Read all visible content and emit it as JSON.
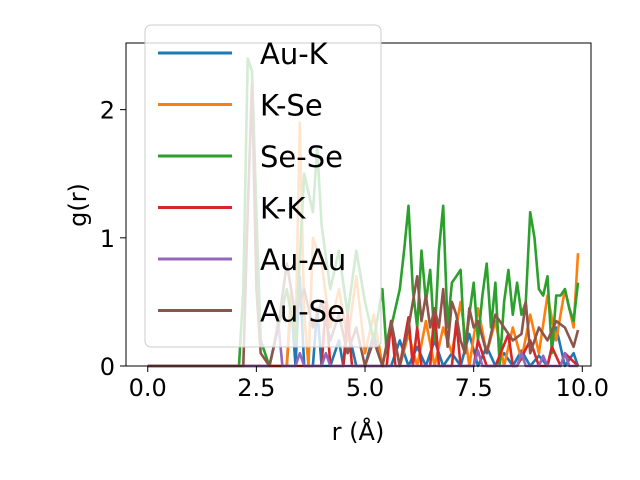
{
  "chart_data": {
    "type": "line",
    "title": "",
    "xlabel": "r (Å)",
    "ylabel": "g(r)",
    "xlim": [
      -0.5,
      10.2
    ],
    "ylim": [
      0,
      2.52
    ],
    "xticks": [
      0.0,
      2.5,
      5.0,
      7.5,
      10.0
    ],
    "xtick_labels": [
      "0.0",
      "2.5",
      "5.0",
      "7.5",
      "10.0"
    ],
    "yticks": [
      0,
      1,
      2
    ],
    "ytick_labels": [
      "0",
      "1",
      "2"
    ],
    "grid": false,
    "legend_position": "upper-left",
    "series": [
      {
        "name": "Au-K",
        "color": "#1f77b4",
        "x": [
          0,
          3.2,
          3.3,
          3.4,
          3.5,
          3.6,
          3.8,
          3.9,
          4.0,
          4.2,
          4.4,
          4.5,
          4.6,
          4.8,
          5.0,
          5.2,
          5.4,
          5.6,
          5.8,
          6.0,
          6.2,
          6.4,
          6.6,
          6.8,
          7.0,
          7.2,
          7.4,
          7.6,
          7.8,
          8.0,
          8.2,
          8.4,
          8.6,
          8.8,
          9.0,
          9.2,
          9.4,
          9.6,
          9.8,
          9.9
        ],
        "y": [
          0,
          0,
          0.5,
          0,
          0.7,
          0,
          0,
          0.45,
          0,
          0,
          0.2,
          0,
          0.3,
          0,
          0,
          0.25,
          0,
          0,
          0.2,
          0,
          0.15,
          0,
          0.2,
          0,
          0.1,
          0,
          0.25,
          0,
          0.15,
          0,
          0.1,
          0,
          0.12,
          0,
          0.08,
          0,
          0.3,
          0,
          0.1,
          0
        ]
      },
      {
        "name": "K-Se",
        "color": "#ff7f0e",
        "x": [
          0,
          3.2,
          3.3,
          3.4,
          3.5,
          3.6,
          3.7,
          3.8,
          4.0,
          4.2,
          4.4,
          4.6,
          4.8,
          5.0,
          5.2,
          5.4,
          5.6,
          5.8,
          6.0,
          6.2,
          6.4,
          6.6,
          6.8,
          7.0,
          7.2,
          7.4,
          7.6,
          7.8,
          8.0,
          8.2,
          8.4,
          8.6,
          8.8,
          9.0,
          9.2,
          9.4,
          9.6,
          9.8,
          9.9
        ],
        "y": [
          0,
          0,
          0.6,
          0.2,
          1.9,
          0.4,
          0,
          1.0,
          0.8,
          0.3,
          0.6,
          0.2,
          0.7,
          0.1,
          0.4,
          0,
          0.3,
          0,
          0.25,
          0,
          0.35,
          0,
          0.3,
          0.1,
          0.5,
          0,
          0.45,
          0.1,
          0.35,
          0,
          0.3,
          0.05,
          0.4,
          0.1,
          0.55,
          0.2,
          0.6,
          0.3,
          0.88
        ]
      },
      {
        "name": "Se-Se",
        "color": "#2ca02c",
        "x": [
          0,
          2.1,
          2.2,
          2.3,
          2.4,
          2.5,
          2.6,
          2.8,
          3.0,
          3.2,
          3.4,
          3.6,
          3.8,
          3.9,
          4.0,
          4.2,
          4.4,
          4.6,
          4.8,
          5.0,
          5.2,
          5.4,
          5.5,
          5.6,
          5.8,
          5.9,
          6.0,
          6.1,
          6.2,
          6.3,
          6.4,
          6.5,
          6.6,
          6.7,
          6.8,
          6.9,
          7.0,
          7.1,
          7.2,
          7.3,
          7.4,
          7.5,
          7.6,
          7.7,
          7.8,
          7.9,
          8.0,
          8.1,
          8.2,
          8.3,
          8.4,
          8.5,
          8.6,
          8.7,
          8.8,
          8.9,
          9.0,
          9.1,
          9.2,
          9.3,
          9.4,
          9.5,
          9.6,
          9.7,
          9.8,
          9.9
        ],
        "y": [
          0,
          0,
          0.6,
          2.4,
          2.3,
          1.2,
          0.2,
          0,
          0.3,
          0.6,
          0.2,
          1.5,
          1.2,
          1.7,
          1.1,
          0.6,
          0.9,
          0.4,
          0.9,
          0.5,
          0.2,
          0.6,
          0.1,
          0.3,
          0.6,
          0.9,
          1.25,
          0.6,
          0.3,
          0.9,
          0.5,
          0.75,
          0.2,
          0.9,
          1.25,
          0.3,
          0.65,
          0.7,
          0.75,
          0.1,
          0.4,
          0.65,
          0.2,
          0.55,
          0.8,
          0.3,
          0.65,
          0,
          0.5,
          0.75,
          0.4,
          0.65,
          0.4,
          0.5,
          1.2,
          1.0,
          0.6,
          0.55,
          0.7,
          0.1,
          0.55,
          0.55,
          0.6,
          0.45,
          0.35,
          0.65
        ]
      },
      {
        "name": "K-K",
        "color": "#d62728",
        "x": [
          0,
          4.0,
          4.1,
          4.2,
          4.5,
          4.6,
          4.7,
          5.0,
          5.5,
          5.6,
          5.7,
          5.8,
          6.0,
          6.1,
          6.2,
          6.3,
          6.5,
          6.6,
          6.7,
          7.0,
          7.1,
          7.2,
          7.5,
          7.6,
          7.8,
          8.0,
          8.3,
          8.4,
          8.5,
          8.8,
          9.0,
          9.2,
          9.3,
          9.5,
          9.6,
          9.9
        ],
        "y": [
          0,
          0,
          0.5,
          0,
          0,
          0.4,
          0,
          0,
          0,
          0.35,
          0,
          0,
          0.38,
          0,
          0.3,
          0,
          0,
          0.45,
          0,
          0,
          0.35,
          0,
          0,
          0.2,
          0,
          0,
          0.25,
          0,
          0,
          0.2,
          0,
          0,
          0.15,
          0,
          0.1,
          0
        ]
      },
      {
        "name": "Au-Au",
        "color": "#9467bd",
        "x": [
          0,
          2.8,
          2.9,
          3.0,
          3.1,
          3.4,
          3.5,
          3.6,
          4.0,
          4.1,
          4.2,
          5.0,
          6.0,
          7.0,
          7.5,
          7.6,
          7.7,
          8.0,
          8.5,
          8.6,
          8.7,
          9.0,
          9.1,
          9.2,
          9.5,
          9.6,
          9.7,
          9.9
        ],
        "y": [
          0,
          0,
          0.15,
          0.35,
          0,
          0,
          0.1,
          0,
          0,
          0.1,
          0,
          0,
          0,
          0,
          0,
          0.12,
          0,
          0,
          0,
          0.1,
          0,
          0,
          0.08,
          0,
          0,
          0.1,
          0,
          0
        ]
      },
      {
        "name": "Au-Se",
        "color": "#8c564b",
        "x": [
          0,
          2.2,
          2.3,
          2.4,
          2.5,
          2.6,
          2.8,
          3.0,
          3.2,
          3.4,
          3.6,
          3.8,
          4.0,
          4.2,
          4.4,
          4.6,
          4.8,
          5.0,
          5.2,
          5.4,
          5.6,
          5.8,
          6.0,
          6.2,
          6.3,
          6.4,
          6.5,
          6.6,
          6.7,
          6.8,
          6.9,
          7.0,
          7.1,
          7.2,
          7.3,
          7.4,
          7.5,
          7.6,
          7.8,
          8.0,
          8.2,
          8.4,
          8.6,
          8.7,
          8.8,
          9.0,
          9.2,
          9.4,
          9.6,
          9.8,
          9.9
        ],
        "y": [
          0,
          0,
          1.2,
          2.2,
          0.6,
          0.1,
          0,
          0.3,
          0.8,
          0.4,
          0.6,
          0.3,
          0.5,
          0.2,
          0.4,
          0.1,
          0.3,
          0,
          0.2,
          0,
          0.35,
          0,
          0.3,
          0.7,
          0.35,
          0.55,
          0.3,
          0.45,
          0.3,
          0.6,
          0.15,
          0.5,
          0.4,
          0.2,
          0.1,
          0.45,
          0.3,
          0.35,
          0.1,
          0.4,
          0.3,
          0.2,
          0.25,
          0.5,
          0.1,
          0.3,
          0.2,
          0.35,
          0.3,
          0.15,
          0.28
        ]
      }
    ]
  }
}
